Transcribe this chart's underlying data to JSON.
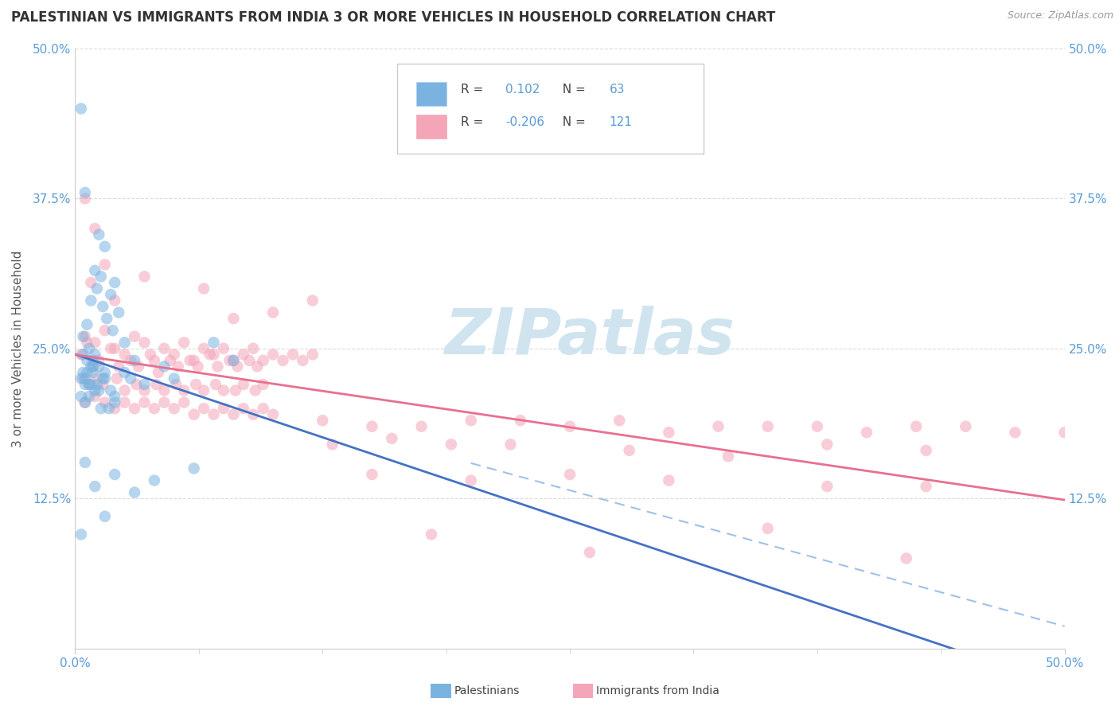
{
  "title": "PALESTINIAN VS IMMIGRANTS FROM INDIA 3 OR MORE VEHICLES IN HOUSEHOLD CORRELATION CHART",
  "source_text": "Source: ZipAtlas.com",
  "ylabel": "3 or more Vehicles in Household",
  "xlim": [
    0.0,
    50.0
  ],
  "ylim": [
    0.0,
    50.0
  ],
  "ytick_labels": [
    "12.5%",
    "25.0%",
    "37.5%",
    "50.0%"
  ],
  "ytick_values": [
    12.5,
    25.0,
    37.5,
    50.0
  ],
  "r_blue": "0.102",
  "n_blue": "63",
  "r_pink": "-0.206",
  "n_pink": "121",
  "blue_dot_color": "#7ab3e0",
  "pink_dot_color": "#f4a5b8",
  "blue_line_color": "#4472c4",
  "blue_dash_color": "#a0c0e8",
  "pink_line_color": "#e87090",
  "tick_color": "#5b9bd5",
  "grid_color": "#cccccc",
  "title_color": "#333333",
  "source_color": "#999999",
  "watermark_text": "ZIPatlas",
  "watermark_color": "#d0e4f0",
  "legend_box_color": "#e8e8e8",
  "background_color": "#ffffff",
  "title_fontsize": 12,
  "tick_fontsize": 11,
  "ylabel_fontsize": 11,
  "blue_scatter": [
    [
      0.3,
      45.0
    ],
    [
      0.5,
      38.0
    ],
    [
      1.2,
      34.5
    ],
    [
      1.5,
      33.5
    ],
    [
      1.0,
      31.5
    ],
    [
      1.3,
      31.0
    ],
    [
      2.0,
      30.5
    ],
    [
      1.1,
      30.0
    ],
    [
      1.8,
      29.5
    ],
    [
      0.8,
      29.0
    ],
    [
      1.4,
      28.5
    ],
    [
      2.2,
      28.0
    ],
    [
      1.6,
      27.5
    ],
    [
      0.6,
      27.0
    ],
    [
      1.9,
      26.5
    ],
    [
      0.4,
      26.0
    ],
    [
      2.5,
      25.5
    ],
    [
      0.7,
      25.0
    ],
    [
      1.0,
      24.5
    ],
    [
      3.0,
      24.0
    ],
    [
      0.9,
      23.5
    ],
    [
      1.5,
      23.0
    ],
    [
      2.8,
      22.5
    ],
    [
      0.5,
      22.0
    ],
    [
      1.2,
      21.5
    ],
    [
      0.3,
      21.0
    ],
    [
      2.0,
      20.5
    ],
    [
      1.7,
      20.0
    ],
    [
      0.4,
      23.0
    ],
    [
      0.6,
      24.0
    ],
    [
      0.8,
      23.5
    ],
    [
      1.1,
      22.0
    ],
    [
      0.5,
      22.5
    ],
    [
      0.7,
      21.0
    ],
    [
      0.9,
      23.0
    ],
    [
      1.3,
      20.0
    ],
    [
      0.4,
      24.5
    ],
    [
      0.6,
      23.0
    ],
    [
      0.8,
      22.0
    ],
    [
      1.0,
      21.5
    ],
    [
      1.5,
      22.5
    ],
    [
      2.0,
      21.0
    ],
    [
      0.5,
      20.5
    ],
    [
      0.7,
      22.0
    ],
    [
      0.3,
      22.5
    ],
    [
      1.2,
      23.5
    ],
    [
      0.9,
      24.0
    ],
    [
      1.4,
      22.5
    ],
    [
      2.5,
      23.0
    ],
    [
      1.8,
      21.5
    ],
    [
      3.5,
      22.0
    ],
    [
      5.0,
      22.5
    ],
    [
      6.0,
      15.0
    ],
    [
      4.0,
      14.0
    ],
    [
      2.0,
      14.5
    ],
    [
      0.5,
      15.5
    ],
    [
      1.0,
      13.5
    ],
    [
      0.3,
      9.5
    ],
    [
      1.5,
      11.0
    ],
    [
      7.0,
      25.5
    ],
    [
      8.0,
      24.0
    ],
    [
      4.5,
      23.5
    ],
    [
      3.0,
      13.0
    ]
  ],
  "pink_scatter": [
    [
      0.5,
      37.5
    ],
    [
      1.0,
      35.0
    ],
    [
      0.8,
      30.5
    ],
    [
      1.5,
      32.0
    ],
    [
      2.0,
      29.0
    ],
    [
      3.5,
      31.0
    ],
    [
      6.5,
      30.0
    ],
    [
      8.0,
      27.5
    ],
    [
      10.0,
      28.0
    ],
    [
      12.0,
      29.0
    ],
    [
      0.5,
      26.0
    ],
    [
      1.0,
      25.5
    ],
    [
      1.5,
      26.5
    ],
    [
      2.0,
      25.0
    ],
    [
      2.5,
      24.5
    ],
    [
      3.0,
      26.0
    ],
    [
      3.5,
      25.5
    ],
    [
      4.0,
      24.0
    ],
    [
      4.5,
      25.0
    ],
    [
      5.0,
      24.5
    ],
    [
      5.5,
      25.5
    ],
    [
      6.0,
      24.0
    ],
    [
      6.5,
      25.0
    ],
    [
      7.0,
      24.5
    ],
    [
      7.5,
      25.0
    ],
    [
      8.0,
      24.0
    ],
    [
      8.5,
      24.5
    ],
    [
      9.0,
      25.0
    ],
    [
      9.5,
      24.0
    ],
    [
      10.0,
      24.5
    ],
    [
      10.5,
      24.0
    ],
    [
      11.0,
      24.5
    ],
    [
      11.5,
      24.0
    ],
    [
      12.0,
      24.5
    ],
    [
      0.3,
      24.5
    ],
    [
      0.6,
      25.5
    ],
    [
      0.9,
      23.5
    ],
    [
      1.2,
      24.0
    ],
    [
      1.8,
      25.0
    ],
    [
      2.2,
      23.5
    ],
    [
      2.8,
      24.0
    ],
    [
      3.2,
      23.5
    ],
    [
      3.8,
      24.5
    ],
    [
      4.2,
      23.0
    ],
    [
      4.8,
      24.0
    ],
    [
      5.2,
      23.5
    ],
    [
      5.8,
      24.0
    ],
    [
      6.2,
      23.5
    ],
    [
      6.8,
      24.5
    ],
    [
      7.2,
      23.5
    ],
    [
      7.8,
      24.0
    ],
    [
      8.2,
      23.5
    ],
    [
      8.8,
      24.0
    ],
    [
      9.2,
      23.5
    ],
    [
      0.4,
      22.5
    ],
    [
      0.7,
      22.0
    ],
    [
      1.1,
      22.5
    ],
    [
      1.4,
      22.0
    ],
    [
      2.1,
      22.5
    ],
    [
      2.5,
      21.5
    ],
    [
      3.1,
      22.0
    ],
    [
      3.5,
      21.5
    ],
    [
      4.1,
      22.0
    ],
    [
      4.5,
      21.5
    ],
    [
      5.1,
      22.0
    ],
    [
      5.5,
      21.5
    ],
    [
      6.1,
      22.0
    ],
    [
      6.5,
      21.5
    ],
    [
      7.1,
      22.0
    ],
    [
      7.5,
      21.5
    ],
    [
      8.1,
      21.5
    ],
    [
      8.5,
      22.0
    ],
    [
      9.1,
      21.5
    ],
    [
      9.5,
      22.0
    ],
    [
      0.5,
      20.5
    ],
    [
      1.0,
      21.0
    ],
    [
      1.5,
      20.5
    ],
    [
      2.0,
      20.0
    ],
    [
      2.5,
      20.5
    ],
    [
      3.0,
      20.0
    ],
    [
      3.5,
      20.5
    ],
    [
      4.0,
      20.0
    ],
    [
      4.5,
      20.5
    ],
    [
      5.0,
      20.0
    ],
    [
      5.5,
      20.5
    ],
    [
      6.0,
      19.5
    ],
    [
      6.5,
      20.0
    ],
    [
      7.0,
      19.5
    ],
    [
      7.5,
      20.0
    ],
    [
      8.0,
      19.5
    ],
    [
      8.5,
      20.0
    ],
    [
      9.0,
      19.5
    ],
    [
      9.5,
      20.0
    ],
    [
      10.0,
      19.5
    ],
    [
      12.5,
      19.0
    ],
    [
      15.0,
      18.5
    ],
    [
      17.5,
      18.5
    ],
    [
      20.0,
      19.0
    ],
    [
      22.5,
      19.0
    ],
    [
      25.0,
      18.5
    ],
    [
      27.5,
      19.0
    ],
    [
      30.0,
      18.0
    ],
    [
      32.5,
      18.5
    ],
    [
      35.0,
      18.5
    ],
    [
      37.5,
      18.5
    ],
    [
      40.0,
      18.0
    ],
    [
      42.5,
      18.5
    ],
    [
      45.0,
      18.5
    ],
    [
      47.5,
      18.0
    ],
    [
      50.0,
      18.0
    ],
    [
      13.0,
      17.0
    ],
    [
      16.0,
      17.5
    ],
    [
      19.0,
      17.0
    ],
    [
      22.0,
      17.0
    ],
    [
      28.0,
      16.5
    ],
    [
      33.0,
      16.0
    ],
    [
      38.0,
      17.0
    ],
    [
      43.0,
      16.5
    ],
    [
      15.0,
      14.5
    ],
    [
      20.0,
      14.0
    ],
    [
      25.0,
      14.5
    ],
    [
      30.0,
      14.0
    ],
    [
      38.0,
      13.5
    ],
    [
      43.0,
      13.5
    ],
    [
      35.0,
      10.0
    ],
    [
      42.0,
      7.5
    ],
    [
      18.0,
      9.5
    ],
    [
      26.0,
      8.0
    ]
  ]
}
